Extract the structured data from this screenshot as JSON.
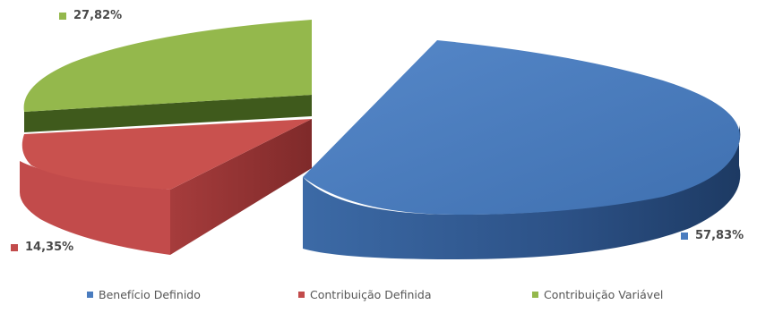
{
  "chart_data": {
    "type": "pie",
    "categories": [
      "Benefício Definido",
      "Contribuição Definida",
      "Contribuição Variável"
    ],
    "values": [
      57.83,
      14.35,
      27.82
    ],
    "labels": [
      "57,83%",
      "14,35%",
      "27,82%"
    ],
    "colors": [
      "#4a7cbf",
      "#c24b4b",
      "#94b84c"
    ],
    "legend_position": "bottom",
    "exploded": true,
    "three_d": true
  }
}
